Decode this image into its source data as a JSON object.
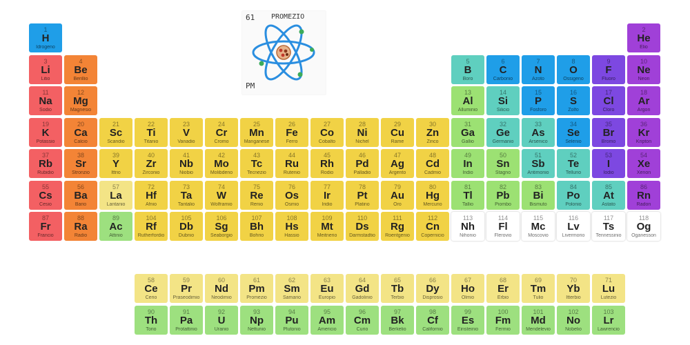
{
  "colors": {
    "alkali": "#f36063",
    "alkaline": "#f38436",
    "transition": "#f1d245",
    "lanthanide": "#f3e486",
    "actinide": "#9de07f",
    "posttransition": "#9ce173",
    "metalloid": "#5fcfbf",
    "nonmetal": "#1f9ee8",
    "halogen": "#7d48e1",
    "noble": "#a040d8",
    "unknown": "#ffffff"
  },
  "preview": {
    "number": "61",
    "name": "PROMEZIO",
    "symbol": "PM",
    "icon": "atom-drawing-icon"
  },
  "elements": [
    {
      "n": "1",
      "s": "H",
      "name": "Idrogeno",
      "c": "nonmetal",
      "col": 1,
      "row": 1
    },
    {
      "n": "2",
      "s": "He",
      "name": "Elio",
      "c": "noble",
      "col": 18,
      "row": 1
    },
    {
      "n": "3",
      "s": "Li",
      "name": "Litio",
      "c": "alkali",
      "col": 1,
      "row": 2
    },
    {
      "n": "4",
      "s": "Be",
      "name": "Berillio",
      "c": "alkaline",
      "col": 2,
      "row": 2
    },
    {
      "n": "5",
      "s": "B",
      "name": "Boro",
      "c": "metalloid",
      "col": 13,
      "row": 2
    },
    {
      "n": "6",
      "s": "C",
      "name": "Carbonio",
      "c": "nonmetal",
      "col": 14,
      "row": 2
    },
    {
      "n": "7",
      "s": "N",
      "name": "Azoto",
      "c": "nonmetal",
      "col": 15,
      "row": 2
    },
    {
      "n": "8",
      "s": "O",
      "name": "Ossigeno",
      "c": "nonmetal",
      "col": 16,
      "row": 2
    },
    {
      "n": "9",
      "s": "F",
      "name": "Fluoro",
      "c": "halogen",
      "col": 17,
      "row": 2
    },
    {
      "n": "10",
      "s": "Ne",
      "name": "Neon",
      "c": "noble",
      "col": 18,
      "row": 2
    },
    {
      "n": "11",
      "s": "Na",
      "name": "Sodio",
      "c": "alkali",
      "col": 1,
      "row": 3
    },
    {
      "n": "12",
      "s": "Mg",
      "name": "Magnesio",
      "c": "alkaline",
      "col": 2,
      "row": 3
    },
    {
      "n": "13",
      "s": "Al",
      "name": "Alluminio",
      "c": "posttransition",
      "col": 13,
      "row": 3
    },
    {
      "n": "14",
      "s": "Si",
      "name": "Silicio",
      "c": "metalloid",
      "col": 14,
      "row": 3
    },
    {
      "n": "15",
      "s": "P",
      "name": "Fosforo",
      "c": "nonmetal",
      "col": 15,
      "row": 3
    },
    {
      "n": "16",
      "s": "S",
      "name": "Zolfo",
      "c": "nonmetal",
      "col": 16,
      "row": 3
    },
    {
      "n": "17",
      "s": "Cl",
      "name": "Cloro",
      "c": "halogen",
      "col": 17,
      "row": 3
    },
    {
      "n": "18",
      "s": "Ar",
      "name": "Argon",
      "c": "noble",
      "col": 18,
      "row": 3
    },
    {
      "n": "19",
      "s": "K",
      "name": "Potassio",
      "c": "alkali",
      "col": 1,
      "row": 4
    },
    {
      "n": "20",
      "s": "Ca",
      "name": "Calcio",
      "c": "alkaline",
      "col": 2,
      "row": 4
    },
    {
      "n": "21",
      "s": "Sc",
      "name": "Scandio",
      "c": "transition",
      "col": 3,
      "row": 4
    },
    {
      "n": "22",
      "s": "Ti",
      "name": "Titanio",
      "c": "transition",
      "col": 4,
      "row": 4
    },
    {
      "n": "23",
      "s": "V",
      "name": "Vanadio",
      "c": "transition",
      "col": 5,
      "row": 4
    },
    {
      "n": "24",
      "s": "Cr",
      "name": "Cromo",
      "c": "transition",
      "col": 6,
      "row": 4
    },
    {
      "n": "25",
      "s": "Mn",
      "name": "Manganese",
      "c": "transition",
      "col": 7,
      "row": 4
    },
    {
      "n": "26",
      "s": "Fe",
      "name": "Ferro",
      "c": "transition",
      "col": 8,
      "row": 4
    },
    {
      "n": "27",
      "s": "Co",
      "name": "Cobalto",
      "c": "transition",
      "col": 9,
      "row": 4
    },
    {
      "n": "28",
      "s": "Ni",
      "name": "Nichel",
      "c": "transition",
      "col": 10,
      "row": 4
    },
    {
      "n": "29",
      "s": "Cu",
      "name": "Rame",
      "c": "transition",
      "col": 11,
      "row": 4
    },
    {
      "n": "30",
      "s": "Zn",
      "name": "Zinco",
      "c": "transition",
      "col": 12,
      "row": 4
    },
    {
      "n": "31",
      "s": "Ga",
      "name": "Gallio",
      "c": "posttransition",
      "col": 13,
      "row": 4
    },
    {
      "n": "32",
      "s": "Ge",
      "name": "Germanio",
      "c": "metalloid",
      "col": 14,
      "row": 4
    },
    {
      "n": "33",
      "s": "As",
      "name": "Arsenico",
      "c": "metalloid",
      "col": 15,
      "row": 4
    },
    {
      "n": "34",
      "s": "Se",
      "name": "Selenio",
      "c": "nonmetal",
      "col": 16,
      "row": 4
    },
    {
      "n": "35",
      "s": "Br",
      "name": "Bromo",
      "c": "halogen",
      "col": 17,
      "row": 4
    },
    {
      "n": "36",
      "s": "Kr",
      "name": "Kripton",
      "c": "noble",
      "col": 18,
      "row": 4
    },
    {
      "n": "37",
      "s": "Rb",
      "name": "Rubidio",
      "c": "alkali",
      "col": 1,
      "row": 5
    },
    {
      "n": "38",
      "s": "Sr",
      "name": "Stronzio",
      "c": "alkaline",
      "col": 2,
      "row": 5
    },
    {
      "n": "39",
      "s": "Y",
      "name": "Ittrio",
      "c": "transition",
      "col": 3,
      "row": 5
    },
    {
      "n": "40",
      "s": "Zr",
      "name": "Zirconio",
      "c": "transition",
      "col": 4,
      "row": 5
    },
    {
      "n": "41",
      "s": "Nb",
      "name": "Niobio",
      "c": "transition",
      "col": 5,
      "row": 5
    },
    {
      "n": "42",
      "s": "Mo",
      "name": "Molibdeno",
      "c": "transition",
      "col": 6,
      "row": 5
    },
    {
      "n": "43",
      "s": "Tc",
      "name": "Tecnezio",
      "c": "transition",
      "col": 7,
      "row": 5
    },
    {
      "n": "44",
      "s": "Ru",
      "name": "Rutenio",
      "c": "transition",
      "col": 8,
      "row": 5
    },
    {
      "n": "45",
      "s": "Rh",
      "name": "Rodio",
      "c": "transition",
      "col": 9,
      "row": 5
    },
    {
      "n": "46",
      "s": "Pd",
      "name": "Palladio",
      "c": "transition",
      "col": 10,
      "row": 5
    },
    {
      "n": "47",
      "s": "Ag",
      "name": "Argento",
      "c": "transition",
      "col": 11,
      "row": 5
    },
    {
      "n": "48",
      "s": "Cd",
      "name": "Cadmio",
      "c": "transition",
      "col": 12,
      "row": 5
    },
    {
      "n": "49",
      "s": "In",
      "name": "Indio",
      "c": "posttransition",
      "col": 13,
      "row": 5
    },
    {
      "n": "50",
      "s": "Sn",
      "name": "Stagno",
      "c": "posttransition",
      "col": 14,
      "row": 5
    },
    {
      "n": "51",
      "s": "Sb",
      "name": "Antimonio",
      "c": "metalloid",
      "col": 15,
      "row": 5
    },
    {
      "n": "52",
      "s": "Te",
      "name": "Tellurio",
      "c": "metalloid",
      "col": 16,
      "row": 5
    },
    {
      "n": "53",
      "s": "I",
      "name": "Iodio",
      "c": "halogen",
      "col": 17,
      "row": 5
    },
    {
      "n": "54",
      "s": "Xe",
      "name": "Xenon",
      "c": "noble",
      "col": 18,
      "row": 5
    },
    {
      "n": "55",
      "s": "Cs",
      "name": "Cesio",
      "c": "alkali",
      "col": 1,
      "row": 6
    },
    {
      "n": "56",
      "s": "Ba",
      "name": "Bario",
      "c": "alkaline",
      "col": 2,
      "row": 6
    },
    {
      "n": "57",
      "s": "La",
      "name": "Lantanio",
      "c": "lanthanide",
      "col": 3,
      "row": 6
    },
    {
      "n": "72",
      "s": "Hf",
      "name": "Afnio",
      "c": "transition",
      "col": 4,
      "row": 6
    },
    {
      "n": "73",
      "s": "Ta",
      "name": "Tantalio",
      "c": "transition",
      "col": 5,
      "row": 6
    },
    {
      "n": "74",
      "s": "W",
      "name": "Wolframio",
      "c": "transition",
      "col": 6,
      "row": 6
    },
    {
      "n": "75",
      "s": "Re",
      "name": "Renio",
      "c": "transition",
      "col": 7,
      "row": 6
    },
    {
      "n": "76",
      "s": "Os",
      "name": "Osmio",
      "c": "transition",
      "col": 8,
      "row": 6
    },
    {
      "n": "77",
      "s": "Ir",
      "name": "Iridio",
      "c": "transition",
      "col": 9,
      "row": 6
    },
    {
      "n": "78",
      "s": "Pt",
      "name": "Platino",
      "c": "transition",
      "col": 10,
      "row": 6
    },
    {
      "n": "79",
      "s": "Au",
      "name": "Oro",
      "c": "transition",
      "col": 11,
      "row": 6
    },
    {
      "n": "80",
      "s": "Hg",
      "name": "Mercurio",
      "c": "transition",
      "col": 12,
      "row": 6
    },
    {
      "n": "81",
      "s": "Tl",
      "name": "Tallio",
      "c": "posttransition",
      "col": 13,
      "row": 6
    },
    {
      "n": "82",
      "s": "Pb",
      "name": "Piombo",
      "c": "posttransition",
      "col": 14,
      "row": 6
    },
    {
      "n": "83",
      "s": "Bi",
      "name": "Bismuto",
      "c": "posttransition",
      "col": 15,
      "row": 6
    },
    {
      "n": "84",
      "s": "Po",
      "name": "Polonio",
      "c": "metalloid",
      "col": 16,
      "row": 6
    },
    {
      "n": "85",
      "s": "At",
      "name": "Astato",
      "c": "metalloid",
      "col": 17,
      "row": 6
    },
    {
      "n": "86",
      "s": "Rn",
      "name": "Radon",
      "c": "noble",
      "col": 18,
      "row": 6
    },
    {
      "n": "87",
      "s": "Fr",
      "name": "Francio",
      "c": "alkali",
      "col": 1,
      "row": 7
    },
    {
      "n": "88",
      "s": "Ra",
      "name": "Radio",
      "c": "alkaline",
      "col": 2,
      "row": 7
    },
    {
      "n": "89",
      "s": "Ac",
      "name": "Attinio",
      "c": "actinide",
      "col": 3,
      "row": 7
    },
    {
      "n": "104",
      "s": "Rf",
      "name": "Rutherfordio",
      "c": "transition",
      "col": 4,
      "row": 7
    },
    {
      "n": "105",
      "s": "Db",
      "name": "Dubnio",
      "c": "transition",
      "col": 5,
      "row": 7
    },
    {
      "n": "106",
      "s": "Sg",
      "name": "Seaborgio",
      "c": "transition",
      "col": 6,
      "row": 7
    },
    {
      "n": "107",
      "s": "Bh",
      "name": "Bohrio",
      "c": "transition",
      "col": 7,
      "row": 7
    },
    {
      "n": "108",
      "s": "Hs",
      "name": "Hassio",
      "c": "transition",
      "col": 8,
      "row": 7
    },
    {
      "n": "109",
      "s": "Mt",
      "name": "Meitnerio",
      "c": "transition",
      "col": 9,
      "row": 7
    },
    {
      "n": "110",
      "s": "Ds",
      "name": "Darmstadtio",
      "c": "transition",
      "col": 10,
      "row": 7
    },
    {
      "n": "111",
      "s": "Rg",
      "name": "Roentgenio",
      "c": "transition",
      "col": 11,
      "row": 7
    },
    {
      "n": "112",
      "s": "Cn",
      "name": "Copernicio",
      "c": "transition",
      "col": 12,
      "row": 7
    },
    {
      "n": "113",
      "s": "Nh",
      "name": "Nihonio",
      "c": "unknown",
      "col": 13,
      "row": 7
    },
    {
      "n": "114",
      "s": "Fl",
      "name": "Flerovio",
      "c": "unknown",
      "col": 14,
      "row": 7
    },
    {
      "n": "115",
      "s": "Mc",
      "name": "Moscovio",
      "c": "unknown",
      "col": 15,
      "row": 7
    },
    {
      "n": "116",
      "s": "Lv",
      "name": "Livermorio",
      "c": "unknown",
      "col": 16,
      "row": 7
    },
    {
      "n": "117",
      "s": "Ts",
      "name": "Tennessinio",
      "c": "unknown",
      "col": 17,
      "row": 7
    },
    {
      "n": "118",
      "s": "Og",
      "name": "Oganesson",
      "c": "unknown",
      "col": 18,
      "row": 7
    },
    {
      "n": "58",
      "s": "Ce",
      "name": "Cerio",
      "c": "lanthanide",
      "col": 4,
      "row": 9
    },
    {
      "n": "59",
      "s": "Pr",
      "name": "Praseodimio",
      "c": "lanthanide",
      "col": 5,
      "row": 9
    },
    {
      "n": "60",
      "s": "Nd",
      "name": "Neodimio",
      "c": "lanthanide",
      "col": 6,
      "row": 9
    },
    {
      "n": "61",
      "s": "Pm",
      "name": "Promezio",
      "c": "lanthanide",
      "col": 7,
      "row": 9
    },
    {
      "n": "62",
      "s": "Sm",
      "name": "Samario",
      "c": "lanthanide",
      "col": 8,
      "row": 9
    },
    {
      "n": "63",
      "s": "Eu",
      "name": "Europio",
      "c": "lanthanide",
      "col": 9,
      "row": 9
    },
    {
      "n": "64",
      "s": "Gd",
      "name": "Gadolinio",
      "c": "lanthanide",
      "col": 10,
      "row": 9
    },
    {
      "n": "65",
      "s": "Tb",
      "name": "Terbio",
      "c": "lanthanide",
      "col": 11,
      "row": 9
    },
    {
      "n": "66",
      "s": "Dy",
      "name": "Disprosio",
      "c": "lanthanide",
      "col": 12,
      "row": 9
    },
    {
      "n": "67",
      "s": "Ho",
      "name": "Olmio",
      "c": "lanthanide",
      "col": 13,
      "row": 9
    },
    {
      "n": "68",
      "s": "Er",
      "name": "Erbio",
      "c": "lanthanide",
      "col": 14,
      "row": 9
    },
    {
      "n": "69",
      "s": "Tm",
      "name": "Tulio",
      "c": "lanthanide",
      "col": 15,
      "row": 9
    },
    {
      "n": "70",
      "s": "Yb",
      "name": "Itterbio",
      "c": "lanthanide",
      "col": 16,
      "row": 9
    },
    {
      "n": "71",
      "s": "Lu",
      "name": "Lutezio",
      "c": "lanthanide",
      "col": 17,
      "row": 9
    },
    {
      "n": "90",
      "s": "Th",
      "name": "Torio",
      "c": "actinide",
      "col": 4,
      "row": 10
    },
    {
      "n": "91",
      "s": "Pa",
      "name": "Protattinio",
      "c": "actinide",
      "col": 5,
      "row": 10
    },
    {
      "n": "92",
      "s": "U",
      "name": "Uranio",
      "c": "actinide",
      "col": 6,
      "row": 10
    },
    {
      "n": "93",
      "s": "Np",
      "name": "Nettunio",
      "c": "actinide",
      "col": 7,
      "row": 10
    },
    {
      "n": "94",
      "s": "Pu",
      "name": "Plutonio",
      "c": "actinide",
      "col": 8,
      "row": 10
    },
    {
      "n": "95",
      "s": "Am",
      "name": "Americio",
      "c": "actinide",
      "col": 9,
      "row": 10
    },
    {
      "n": "96",
      "s": "Cm",
      "name": "Curio",
      "c": "actinide",
      "col": 10,
      "row": 10
    },
    {
      "n": "97",
      "s": "Bk",
      "name": "Berkelio",
      "c": "actinide",
      "col": 11,
      "row": 10
    },
    {
      "n": "98",
      "s": "Cf",
      "name": "Californio",
      "c": "actinide",
      "col": 12,
      "row": 10
    },
    {
      "n": "99",
      "s": "Es",
      "name": "Einsteinio",
      "c": "actinide",
      "col": 13,
      "row": 10
    },
    {
      "n": "100",
      "s": "Fm",
      "name": "Fermio",
      "c": "actinide",
      "col": 14,
      "row": 10
    },
    {
      "n": "101",
      "s": "Md",
      "name": "Mendelevio",
      "c": "actinide",
      "col": 15,
      "row": 10
    },
    {
      "n": "102",
      "s": "No",
      "name": "Nobelio",
      "c": "actinide",
      "col": 16,
      "row": 10
    },
    {
      "n": "103",
      "s": "Lr",
      "name": "Lawrencio",
      "c": "actinide",
      "col": 17,
      "row": 10
    }
  ]
}
